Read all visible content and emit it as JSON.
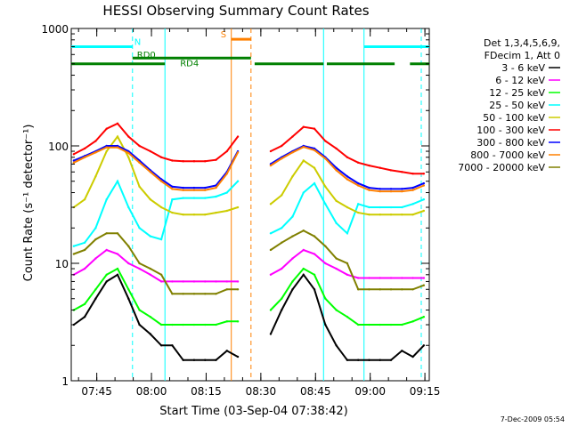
{
  "chart_data": {
    "type": "line",
    "title": "HESSI Observing Summary Count Rates",
    "xlabel": "Start Time (03-Sep-04 07:38:42)",
    "ylabel": "Count Rate (s⁻¹ detector⁻¹)",
    "y_scale": "log",
    "ylim": [
      1,
      1000
    ],
    "xlim_minutes": [
      -0.7,
      97.5
    ],
    "y_ticks": [
      "1",
      "10",
      "100",
      "1000"
    ],
    "x_ticks": [
      "07:45",
      "08:00",
      "08:15",
      "08:30",
      "08:45",
      "09:00",
      "09:15"
    ],
    "timestamp": "7-Dec-2009 05:54",
    "legend_header": [
      "Det 1,3,4,5,6,9,",
      "FDecim 1, Att 0"
    ],
    "colors": {
      "3-6": "#000000",
      "6-12": "#ff00ff",
      "12-25": "#00ff00",
      "25-50": "#00ffff",
      "50-100": "#cccc00",
      "100-300": "#ff0000",
      "300-800": "#0000ff",
      "800-7000": "#ff8000",
      "7000-20000": "#808000",
      "flags_cyan": "#00ffff",
      "flags_green": "#008000",
      "flags_orange": "#ff8000"
    },
    "series": [
      {
        "name": "3 - 6 keV",
        "key": "3-6",
        "x": [
          0,
          3,
          6,
          9,
          12,
          15,
          18,
          21,
          24,
          27,
          30,
          33,
          36,
          39,
          42,
          45,
          48,
          51,
          54,
          57,
          60,
          63,
          66,
          69,
          72,
          75,
          78,
          81,
          84,
          87,
          90,
          93,
          96
        ],
        "y": [
          3,
          3.5,
          5,
          7,
          8,
          5,
          3,
          2.5,
          2,
          2,
          1.5,
          1.5,
          1.5,
          1.5,
          1.8,
          1.6,
          null,
          null,
          2.5,
          4,
          6,
          8,
          6,
          3,
          2,
          1.5,
          1.5,
          1.5,
          1.5,
          1.5,
          1.8,
          1.6,
          2
        ]
      },
      {
        "name": "6 - 12 keV",
        "key": "6-12",
        "x": [
          0,
          3,
          6,
          9,
          12,
          15,
          18,
          21,
          24,
          27,
          30,
          33,
          36,
          39,
          42,
          45,
          48,
          51,
          54,
          57,
          60,
          63,
          66,
          69,
          72,
          75,
          78,
          81,
          84,
          87,
          90,
          93,
          96
        ],
        "y": [
          8,
          9,
          11,
          13,
          12,
          10,
          9,
          8,
          7,
          7,
          7,
          7,
          7,
          7,
          7,
          7,
          null,
          null,
          8,
          9,
          11,
          13,
          12,
          10,
          9,
          8,
          7.5,
          7.5,
          7.5,
          7.5,
          7.5,
          7.5,
          7.5
        ]
      },
      {
        "name": "12 - 25 keV",
        "key": "12-25",
        "x": [
          0,
          3,
          6,
          9,
          12,
          15,
          18,
          21,
          24,
          27,
          30,
          33,
          36,
          39,
          42,
          45,
          48,
          51,
          54,
          57,
          60,
          63,
          66,
          69,
          72,
          75,
          78,
          81,
          84,
          87,
          90,
          93,
          96
        ],
        "y": [
          4,
          4.5,
          6,
          8,
          9,
          6,
          4,
          3.5,
          3,
          3,
          3,
          3,
          3,
          3,
          3.2,
          3.2,
          null,
          null,
          4,
          5,
          7,
          9,
          8,
          5,
          4,
          3.5,
          3,
          3,
          3,
          3,
          3,
          3.2,
          3.5
        ]
      },
      {
        "name": "25 - 50 keV",
        "key": "25-50",
        "x": [
          0,
          3,
          6,
          9,
          12,
          15,
          18,
          21,
          24,
          27,
          30,
          33,
          36,
          39,
          42,
          45,
          48,
          51,
          54,
          57,
          60,
          63,
          66,
          69,
          72,
          75,
          78,
          81,
          84,
          87,
          90,
          93,
          96
        ],
        "y": [
          14,
          15,
          20,
          35,
          50,
          30,
          20,
          17,
          16,
          35,
          36,
          36,
          36,
          37,
          40,
          50,
          null,
          null,
          18,
          20,
          25,
          40,
          48,
          32,
          22,
          18,
          32,
          30,
          30,
          30,
          30,
          32,
          35
        ]
      },
      {
        "name": "50 - 100 keV",
        "key": "50-100",
        "x": [
          0,
          3,
          6,
          9,
          12,
          15,
          18,
          21,
          24,
          27,
          30,
          33,
          36,
          39,
          42,
          45,
          48,
          51,
          54,
          57,
          60,
          63,
          66,
          69,
          72,
          75,
          78,
          81,
          84,
          87,
          90,
          93,
          96
        ],
        "y": [
          30,
          35,
          55,
          90,
          120,
          80,
          45,
          35,
          30,
          27,
          26,
          26,
          26,
          27,
          28,
          30,
          null,
          null,
          32,
          38,
          55,
          75,
          65,
          45,
          34,
          30,
          27,
          26,
          26,
          26,
          26,
          26,
          28
        ]
      },
      {
        "name": "100 - 300 keV",
        "key": "100-300",
        "x": [
          0,
          3,
          6,
          9,
          12,
          15,
          18,
          21,
          24,
          27,
          30,
          33,
          36,
          39,
          42,
          45,
          48,
          51,
          54,
          57,
          60,
          63,
          66,
          69,
          72,
          75,
          78,
          81,
          84,
          87,
          90,
          93,
          96
        ],
        "y": [
          85,
          95,
          110,
          140,
          155,
          120,
          100,
          90,
          80,
          75,
          74,
          74,
          74,
          76,
          90,
          120,
          null,
          null,
          90,
          100,
          120,
          145,
          140,
          110,
          95,
          80,
          72,
          68,
          65,
          62,
          60,
          58,
          58
        ]
      },
      {
        "name": "300 - 800 keV",
        "key": "300-800",
        "x": [
          0,
          3,
          6,
          9,
          12,
          15,
          18,
          21,
          24,
          27,
          30,
          33,
          36,
          39,
          42,
          45,
          48,
          51,
          54,
          57,
          60,
          63,
          66,
          69,
          72,
          75,
          78,
          81,
          84,
          87,
          90,
          93,
          96
        ],
        "y": [
          75,
          82,
          90,
          100,
          100,
          90,
          75,
          62,
          52,
          45,
          44,
          44,
          44,
          46,
          60,
          90,
          null,
          null,
          70,
          80,
          90,
          100,
          95,
          80,
          65,
          55,
          48,
          44,
          43,
          43,
          43,
          44,
          48
        ]
      },
      {
        "name": "800 - 7000 keV",
        "key": "800-7000",
        "x": [
          0,
          3,
          6,
          9,
          12,
          15,
          18,
          21,
          24,
          27,
          30,
          33,
          36,
          39,
          42,
          45,
          48,
          51,
          54,
          57,
          60,
          63,
          66,
          69,
          72,
          75,
          78,
          81,
          84,
          87,
          90,
          93,
          96
        ],
        "y": [
          72,
          80,
          88,
          97,
          97,
          87,
          72,
          60,
          50,
          43,
          42,
          42,
          42,
          44,
          58,
          88,
          null,
          null,
          68,
          78,
          88,
          98,
          92,
          78,
          62,
          52,
          46,
          42,
          41,
          41,
          41,
          42,
          46
        ]
      },
      {
        "name": "7000 - 20000 keV",
        "key": "7000-20000",
        "x": [
          0,
          3,
          6,
          9,
          12,
          15,
          18,
          21,
          24,
          27,
          30,
          33,
          36,
          39,
          42,
          45,
          48,
          51,
          54,
          57,
          60,
          63,
          66,
          69,
          72,
          75,
          78,
          81,
          84,
          87,
          90,
          93,
          96
        ],
        "y": [
          12,
          13,
          16,
          18,
          18,
          14,
          10,
          9,
          8,
          5.5,
          5.5,
          5.5,
          5.5,
          5.5,
          6,
          6,
          null,
          null,
          13,
          15,
          17,
          19,
          17,
          14,
          11,
          10,
          6,
          6,
          6,
          6,
          6,
          6,
          6.5
        ]
      }
    ],
    "annotations": {
      "flags": [
        {
          "label": "N",
          "key": "flags_cyan",
          "level": 700,
          "segments": [
            [
              -0.7,
              16.1
            ],
            [
              79.6,
              97.5
            ]
          ]
        },
        {
          "label": "RD0",
          "key": "flags_green",
          "level": 560,
          "segments": [
            [
              16.1,
              48.6
            ]
          ]
        },
        {
          "label": "RD4",
          "key": "flags_green",
          "level": 500,
          "segments": [
            [
              -0.7,
              25.0
            ],
            [
              49.6,
              68.5
            ],
            [
              69.4,
              88.0
            ],
            [
              92.2,
              97.5
            ]
          ]
        },
        {
          "label": "S",
          "key": "flags_orange",
          "level": 810,
          "segments": [
            [
              43.2,
              48.6
            ]
          ]
        }
      ],
      "vlines": [
        {
          "x": 16.1,
          "key": "flags_cyan",
          "dash": true
        },
        {
          "x": 25.0,
          "key": "flags_cyan",
          "dash": false
        },
        {
          "x": 43.2,
          "key": "flags_orange",
          "dash": false
        },
        {
          "x": 48.6,
          "key": "flags_orange",
          "dash": true
        },
        {
          "x": 68.5,
          "key": "flags_cyan",
          "dash": false
        },
        {
          "x": 79.6,
          "key": "flags_cyan",
          "dash": false
        },
        {
          "x": 95.3,
          "key": "flags_cyan",
          "dash": true
        }
      ]
    }
  }
}
